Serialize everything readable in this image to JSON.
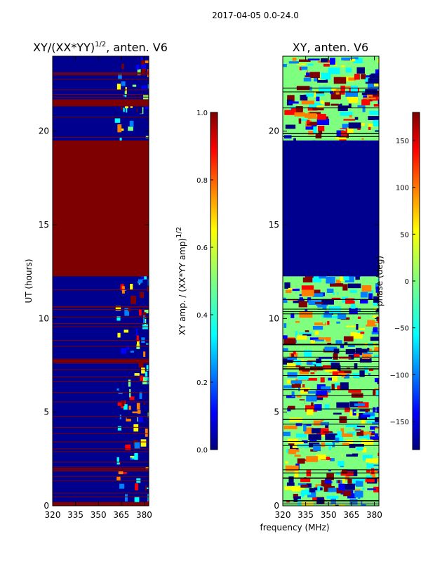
{
  "figure": {
    "suptitle": "2017-04-05 0.0-24.0",
    "xlabel": "frequency (MHz)",
    "ylabel": "UT (hours)"
  },
  "colors": {
    "jet": [
      "#00007f",
      "#0000ff",
      "#007fff",
      "#00ffff",
      "#7fff7f",
      "#ffff00",
      "#ff7f00",
      "#ff0000",
      "#7f0000"
    ],
    "red_line": "#7f0000"
  },
  "chart_data": [
    {
      "type": "heatmap",
      "title_base": "XY/(XX*YY)",
      "title_sup": "1/2",
      "title_suffix": ", anten. V6",
      "xlabel": "frequency (MHz)",
      "ylabel": "UT (hours)",
      "xlim": [
        320,
        383
      ],
      "ylim": [
        0,
        24
      ],
      "xticks": [
        320,
        335,
        350,
        365,
        380
      ],
      "yticks": [
        0,
        5,
        10,
        15,
        20
      ],
      "colorbar": {
        "label_base": "XY amp. / (XX*YY amp)",
        "label_sup": "1/2",
        "range": [
          0.0,
          1.0
        ],
        "ticks": [
          "0.0",
          "0.2",
          "0.4",
          "0.6",
          "0.8",
          "1.0"
        ]
      },
      "flagged_hours": [
        [
          19.6,
          23.0
        ]
      ],
      "data_gap_hours": [
        [
          12.25,
          19.5
        ]
      ],
      "rfi_channels_mhz": [
        360,
        383
      ]
    },
    {
      "type": "heatmap",
      "title": "XY, anten. V6",
      "xlabel": "frequency (MHz)",
      "xlim": [
        320,
        383
      ],
      "ylim": [
        0,
        24
      ],
      "xticks": [
        320,
        335,
        350,
        365,
        380
      ],
      "yticks": [
        0,
        5,
        10,
        15,
        20
      ],
      "colorbar": {
        "label": "phase (deg)",
        "range": [
          -180,
          180
        ],
        "ticks": [
          "150",
          "100",
          "50",
          "0",
          "−50",
          "−100",
          "−150"
        ]
      },
      "data_gap_hours": [
        [
          12.25,
          19.5
        ]
      ]
    }
  ]
}
